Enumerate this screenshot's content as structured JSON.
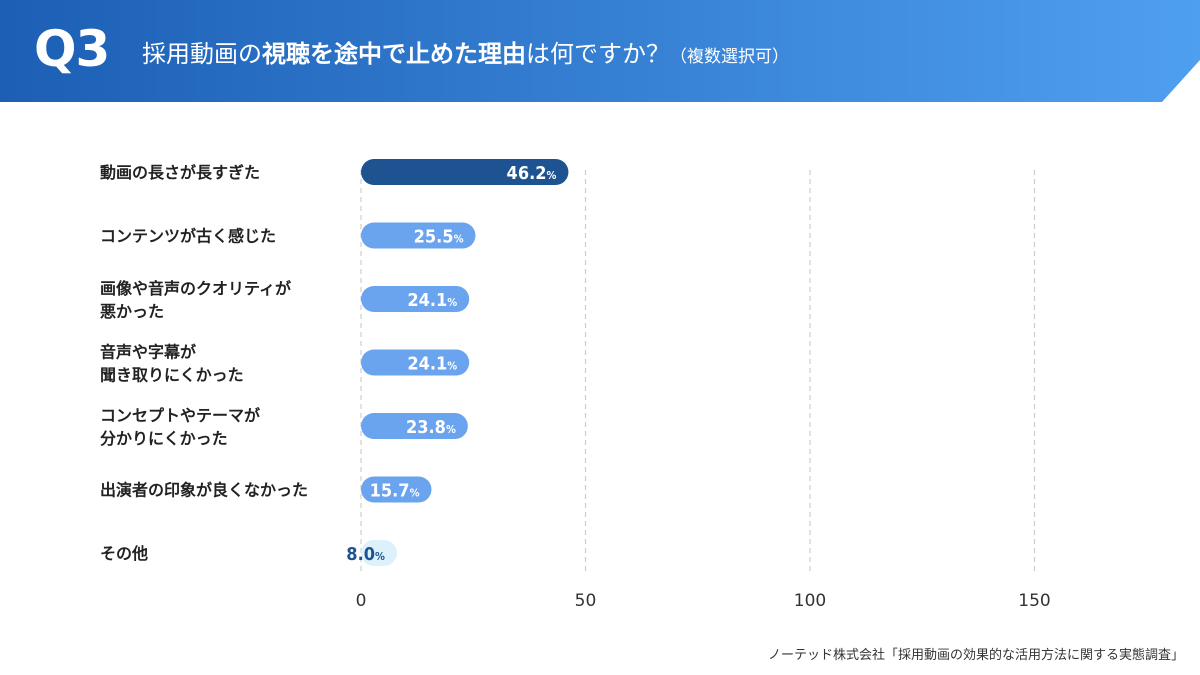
{
  "header": {
    "q_label": "Q3",
    "title_part1": "採用動画の",
    "title_bold": "視聴を途中で止めた理由",
    "title_part2": "は何ですか？",
    "title_note": "（複数選択可）"
  },
  "colors": {
    "header_start": "#1c5fb5",
    "header_end": "#4f9ff0",
    "bar_top": "#1d5391",
    "bar_main": "#6aa3ee",
    "bar_other": "#dcf1fb",
    "label_other": "#1d5391",
    "grid": "#cfcfcf"
  },
  "chart_data": {
    "type": "bar",
    "orientation": "horizontal",
    "categories": [
      "動画の長さが長すぎた",
      "コンテンツが古く感じた",
      "画像や音声のクオリティが\n悪かった",
      "音声や字幕が\n聞き取りにくかった",
      "コンセプトやテーマが\n分かりにくかった",
      "出演者の印象が良くなかった",
      "その他"
    ],
    "values": [
      46.2,
      25.5,
      24.1,
      24.1,
      23.8,
      15.7,
      8.0
    ],
    "value_labels": [
      "46.2",
      "25.5",
      "24.1",
      "24.1",
      "23.8",
      "15.7",
      "8.0"
    ],
    "value_suffix": "%",
    "x_ticks": [
      "0",
      "50",
      "100",
      "150"
    ],
    "xlim": [
      0,
      150
    ],
    "grid": true
  },
  "source": "ノーテッド株式会社「採用動画の効果的な活用方法に関する実態調査」"
}
